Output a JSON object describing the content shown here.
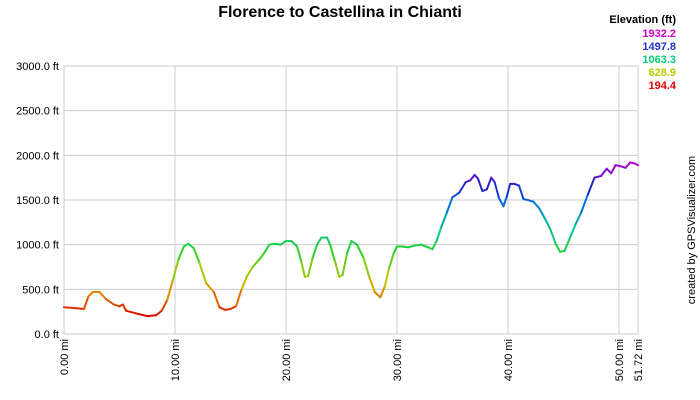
{
  "chart_data": {
    "type": "line",
    "title": "Florence to Castellina in Chianti",
    "legend_title": "Elevation (ft)",
    "legend_values": [
      {
        "label": "1932.2",
        "color": "#cc00cc"
      },
      {
        "label": "1497.8",
        "color": "#2233cc"
      },
      {
        "label": "1063.3",
        "color": "#00cc77"
      },
      {
        "label": "628.9",
        "color": "#bbcc00"
      },
      {
        "label": "194.4",
        "color": "#dd0000"
      }
    ],
    "credit": "created by GPSVisualizer.com",
    "xlim": [
      0,
      51.72
    ],
    "ylim": [
      0,
      3000
    ],
    "x_ticks": [
      "0.00 mi",
      "10.00 mi",
      "20.00 mi",
      "30.00 mi",
      "40.00 mi",
      "50.00 mi",
      "51.72 mi"
    ],
    "x_tick_values": [
      0,
      10,
      20,
      30,
      40,
      50,
      51.72
    ],
    "y_ticks": [
      "0.0 ft",
      "500.0 ft",
      "1000.0 ft",
      "1500.0 ft",
      "2000.0 ft",
      "2500.0 ft",
      "3000.0 ft"
    ],
    "y_tick_values": [
      0,
      500,
      1000,
      1500,
      2000,
      2500,
      3000
    ],
    "grid": true,
    "color_scale": {
      "min": 194.4,
      "max": 1932.2
    },
    "series": [
      {
        "points": [
          [
            0,
            300
          ],
          [
            1.0,
            290
          ],
          [
            1.8,
            280
          ],
          [
            2.2,
            420
          ],
          [
            2.6,
            470
          ],
          [
            3.2,
            470
          ],
          [
            3.8,
            390
          ],
          [
            4.5,
            330
          ],
          [
            5.0,
            310
          ],
          [
            5.3,
            330
          ],
          [
            5.6,
            260
          ],
          [
            6.5,
            230
          ],
          [
            7.5,
            200
          ],
          [
            8.3,
            210
          ],
          [
            8.8,
            260
          ],
          [
            9.3,
            380
          ],
          [
            9.8,
            600
          ],
          [
            10.3,
            830
          ],
          [
            10.8,
            980
          ],
          [
            11.2,
            1010
          ],
          [
            11.7,
            960
          ],
          [
            12.2,
            800
          ],
          [
            12.8,
            570
          ],
          [
            13.5,
            470
          ],
          [
            14.0,
            300
          ],
          [
            14.5,
            270
          ],
          [
            15.0,
            280
          ],
          [
            15.5,
            310
          ],
          [
            16.0,
            500
          ],
          [
            16.5,
            650
          ],
          [
            17.0,
            750
          ],
          [
            17.5,
            820
          ],
          [
            18.0,
            900
          ],
          [
            18.5,
            1000
          ],
          [
            19.0,
            1010
          ],
          [
            19.5,
            1000
          ],
          [
            20.0,
            1040
          ],
          [
            20.5,
            1040
          ],
          [
            21.0,
            980
          ],
          [
            21.4,
            800
          ],
          [
            21.7,
            640
          ],
          [
            22.0,
            650
          ],
          [
            22.4,
            850
          ],
          [
            22.8,
            1000
          ],
          [
            23.2,
            1080
          ],
          [
            23.7,
            1080
          ],
          [
            24.0,
            990
          ],
          [
            24.4,
            820
          ],
          [
            24.8,
            640
          ],
          [
            25.1,
            660
          ],
          [
            25.5,
            900
          ],
          [
            25.9,
            1040
          ],
          [
            26.4,
            1000
          ],
          [
            27.0,
            850
          ],
          [
            27.5,
            640
          ],
          [
            28.0,
            470
          ],
          [
            28.5,
            410
          ],
          [
            28.9,
            530
          ],
          [
            29.3,
            740
          ],
          [
            29.7,
            900
          ],
          [
            30.0,
            980
          ],
          [
            30.5,
            980
          ],
          [
            31.0,
            970
          ],
          [
            31.6,
            990
          ],
          [
            32.2,
            1000
          ],
          [
            32.8,
            970
          ],
          [
            33.2,
            950
          ],
          [
            33.6,
            1050
          ],
          [
            34.0,
            1200
          ],
          [
            34.5,
            1360
          ],
          [
            35.0,
            1530
          ],
          [
            35.6,
            1580
          ],
          [
            36.2,
            1700
          ],
          [
            36.6,
            1720
          ],
          [
            37.0,
            1780
          ],
          [
            37.3,
            1740
          ],
          [
            37.7,
            1600
          ],
          [
            38.1,
            1620
          ],
          [
            38.5,
            1750
          ],
          [
            38.8,
            1700
          ],
          [
            39.2,
            1520
          ],
          [
            39.6,
            1430
          ],
          [
            39.9,
            1540
          ],
          [
            40.2,
            1680
          ],
          [
            40.6,
            1680
          ],
          [
            41.0,
            1660
          ],
          [
            41.4,
            1510
          ],
          [
            41.8,
            1500
          ],
          [
            42.3,
            1480
          ],
          [
            42.8,
            1410
          ],
          [
            43.3,
            1300
          ],
          [
            43.8,
            1180
          ],
          [
            44.3,
            1010
          ],
          [
            44.7,
            920
          ],
          [
            45.1,
            930
          ],
          [
            45.6,
            1080
          ],
          [
            46.1,
            1230
          ],
          [
            46.6,
            1360
          ],
          [
            47.2,
            1560
          ],
          [
            47.8,
            1750
          ],
          [
            48.4,
            1770
          ],
          [
            48.9,
            1850
          ],
          [
            49.3,
            1800
          ],
          [
            49.7,
            1890
          ],
          [
            50.1,
            1880
          ],
          [
            50.6,
            1860
          ],
          [
            51.0,
            1920
          ],
          [
            51.4,
            1910
          ],
          [
            51.72,
            1890
          ]
        ]
      }
    ]
  }
}
